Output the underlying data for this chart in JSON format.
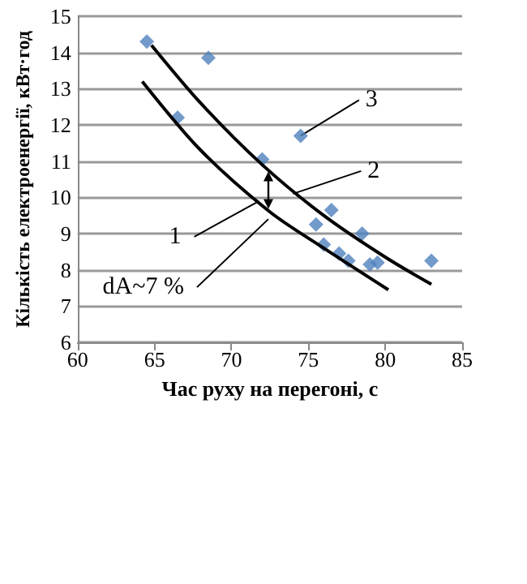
{
  "chart_data": {
    "type": "scatter",
    "xlabel": "Час руху на перегоні, с",
    "ylabel": "Кількість електроенергії, кВт·год",
    "xlim": [
      60,
      85
    ],
    "xticks": [
      60,
      65,
      70,
      75,
      80,
      85
    ],
    "ylim": [
      6,
      15
    ],
    "yticks": [
      6,
      7,
      8,
      9,
      10,
      11,
      12,
      13,
      14,
      15
    ],
    "grid": "y",
    "marker": "diamond",
    "series": [
      {
        "color": "#4f81bd",
        "x": [
          64.5,
          66.5,
          68.5,
          72,
          74.5,
          75.5,
          76,
          76.5,
          77,
          77.6,
          78.5,
          79,
          79.5,
          83
        ],
        "values": [
          14.3,
          12.2,
          13.85,
          11.05,
          11.7,
          9.25,
          8.7,
          9.65,
          8.45,
          8.25,
          9.0,
          8.15,
          8.2,
          8.25
        ]
      },
      {
        "type": "line",
        "color": "#000000",
        "marker": "none",
        "x": [
          64.8,
          68,
          72,
          76,
          80,
          83
        ],
        "values": [
          14.2,
          12.6,
          10.9,
          9.5,
          8.35,
          7.6
        ]
      },
      {
        "type": "line",
        "color": "#000000",
        "marker": "none",
        "x": [
          64.2,
          68,
          72.5,
          76,
          80.2
        ],
        "values": [
          13.2,
          11.3,
          9.6,
          8.6,
          7.45
        ]
      }
    ],
    "annotations": [
      {
        "text": "1",
        "x": 71.8,
        "y": 9.9
      },
      {
        "text": "2",
        "x": 74,
        "y": 10.1
      },
      {
        "text": "3",
        "x": 74.5,
        "y": 11.7
      },
      {
        "text": "dA~7 %",
        "x": 72.4,
        "y": 9.4
      }
    ]
  }
}
